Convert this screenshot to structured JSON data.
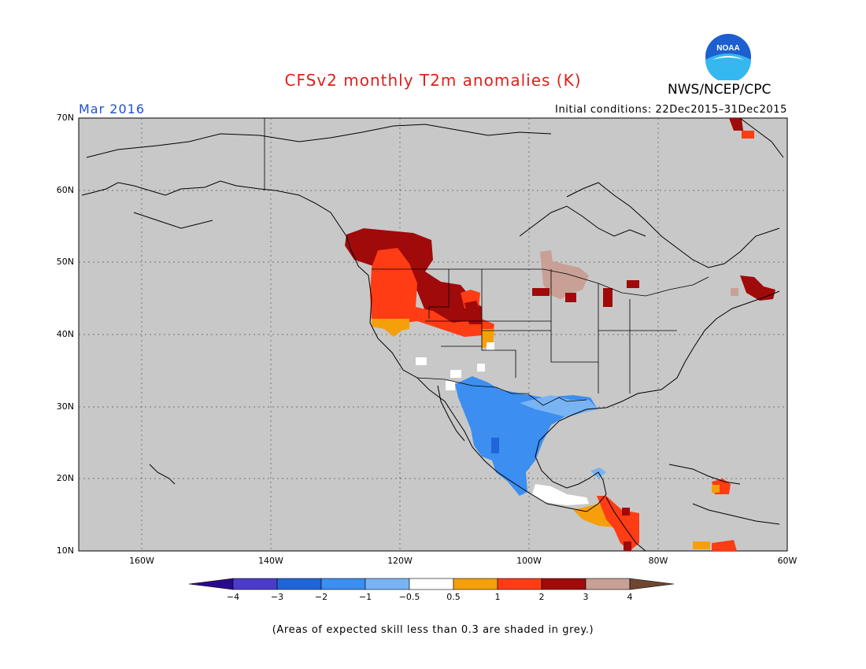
{
  "header": {
    "title": "CFSv2 monthly T2m anomalies (K)",
    "org": "NWS/NCEP/CPC",
    "period": "Mar 2016",
    "initial_conditions": "Initial conditions: 22Dec2015–31Dec2015",
    "logo_text": "NOAA"
  },
  "axes": {
    "lat_labels": [
      "70N",
      "60N",
      "50N",
      "40N",
      "30N",
      "20N",
      "10N"
    ],
    "lon_labels": [
      "160W",
      "140W",
      "120W",
      "100W",
      "80W",
      "60W"
    ]
  },
  "colorbar": {
    "colors": [
      "#2a0a8c",
      "#4a3cc8",
      "#1e66d8",
      "#3c8ef0",
      "#78b4f4",
      "#ffffff",
      "#f5a00a",
      "#ff3c14",
      "#a00a0a",
      "#c8a096",
      "#6e4632"
    ],
    "labels": [
      "−4",
      "−3",
      "−2",
      "−1",
      "−0.5",
      "0.5",
      "1",
      "2",
      "3",
      "4"
    ]
  },
  "note": "(Areas of expected skill less than 0.3 are shaded in grey.)",
  "colors": {
    "background_grey": "#c8c8c8",
    "title_red": "#e0201a",
    "period_blue": "#1f4fd8"
  }
}
